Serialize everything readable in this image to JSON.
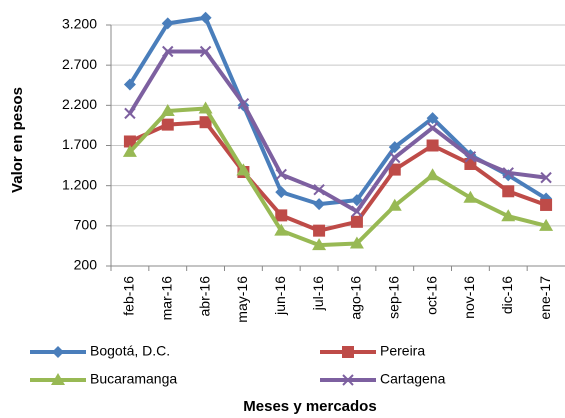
{
  "chart_data": {
    "type": "line",
    "y_label": "Valor en pesos",
    "x_label": "Meses y mercados",
    "categories": [
      "feb-16",
      "mar-16",
      "abr-16",
      "may-16",
      "jun-16",
      "jul-16",
      "ago-16",
      "sep-16",
      "oct-16",
      "nov-16",
      "dic-16",
      "ene-17"
    ],
    "series": [
      {
        "name": "Bogotá, D.C.",
        "color": "#4a7ebb",
        "marker": "diamond",
        "values": [
          2460,
          3220,
          3290,
          2200,
          1120,
          970,
          1020,
          1680,
          2040,
          1580,
          1330,
          1040
        ]
      },
      {
        "name": "Pereira",
        "color": "#be4b48",
        "marker": "square",
        "values": [
          1750,
          1960,
          1990,
          1370,
          830,
          640,
          750,
          1400,
          1700,
          1470,
          1130,
          960
        ]
      },
      {
        "name": "Bucaramanga",
        "color": "#98b954",
        "marker": "triangle",
        "values": [
          1620,
          2130,
          2160,
          1390,
          640,
          460,
          480,
          950,
          1330,
          1050,
          820,
          700
        ]
      },
      {
        "name": "Cartagena",
        "color": "#7d60a0",
        "marker": "x",
        "values": [
          2100,
          2870,
          2870,
          2220,
          1340,
          1150,
          880,
          1550,
          1920,
          1560,
          1360,
          1300
        ]
      }
    ],
    "ylim": [
      200,
      3200
    ],
    "yticks": [
      200,
      {
        "value": 700,
        "label": "700"
      },
      {
        "value": 1200,
        "label": "1.200"
      },
      {
        "value": 1700,
        "label": "1.700"
      },
      {
        "value": 2200,
        "label": "2.200"
      },
      {
        "value": 2700,
        "label": "2.700"
      },
      {
        "value": 3200,
        "label": "3.200"
      }
    ],
    "grid": true
  }
}
